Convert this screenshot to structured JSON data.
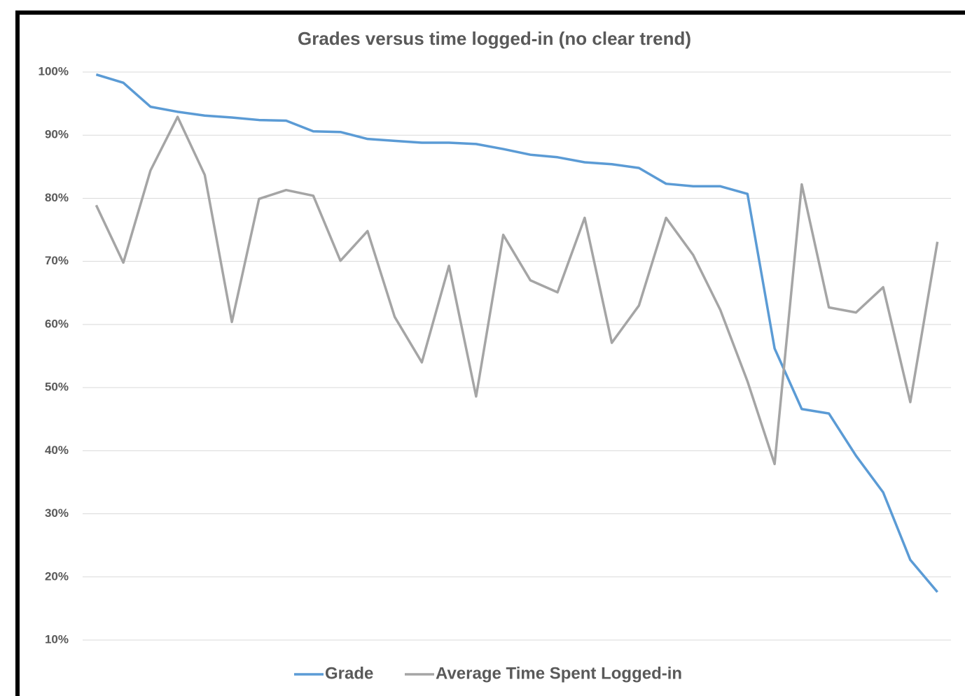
{
  "chart_data": {
    "type": "line",
    "title": "Grades versus time logged-in (no clear trend)",
    "categories": [
      null,
      null,
      null,
      null,
      null,
      null,
      null,
      null,
      null,
      null,
      null,
      null,
      null,
      null,
      null,
      null,
      null,
      null,
      null,
      null,
      null,
      null,
      null,
      null,
      null,
      null,
      null,
      null,
      null,
      null,
      null,
      null
    ],
    "series": [
      {
        "name": "Grade",
        "color": "#5b9bd5",
        "values": [
          99.6,
          98.3,
          94.5,
          93.7,
          93.1,
          92.8,
          92.4,
          92.3,
          90.6,
          90.5,
          89.4,
          89.1,
          88.8,
          88.8,
          88.6,
          87.8,
          86.9,
          86.5,
          85.7,
          85.4,
          84.8,
          82.3,
          81.9,
          81.9,
          80.7,
          56.2,
          46.6,
          45.9,
          39.2,
          33.4,
          22.7,
          17.6
        ]
      },
      {
        "name": "Average Time Spent Logged-in",
        "color": "#a5a5a5",
        "values": [
          78.9,
          69.8,
          84.4,
          92.9,
          83.7,
          60.4,
          79.9,
          81.3,
          80.4,
          70.1,
          74.8,
          61.2,
          54.0,
          69.3,
          48.6,
          74.2,
          67.0,
          65.1,
          76.9,
          57.1,
          63.0,
          76.9,
          71.0,
          62.3,
          51.0,
          37.9,
          82.2,
          62.7,
          61.9,
          65.9,
          47.7,
          73.1
        ]
      }
    ],
    "ylim": [
      10,
      100
    ],
    "yticks": [
      {
        "value": 10,
        "label": "10%"
      },
      {
        "value": 20,
        "label": "20%"
      },
      {
        "value": 30,
        "label": "30%"
      },
      {
        "value": 40,
        "label": "40%"
      },
      {
        "value": 50,
        "label": "50%"
      },
      {
        "value": 60,
        "label": "60%"
      },
      {
        "value": 70,
        "label": "70%"
      },
      {
        "value": 80,
        "label": "80%"
      },
      {
        "value": 90,
        "label": "90%"
      },
      {
        "value": 100,
        "label": "100%"
      }
    ],
    "grid": true,
    "legend": "bottom"
  }
}
